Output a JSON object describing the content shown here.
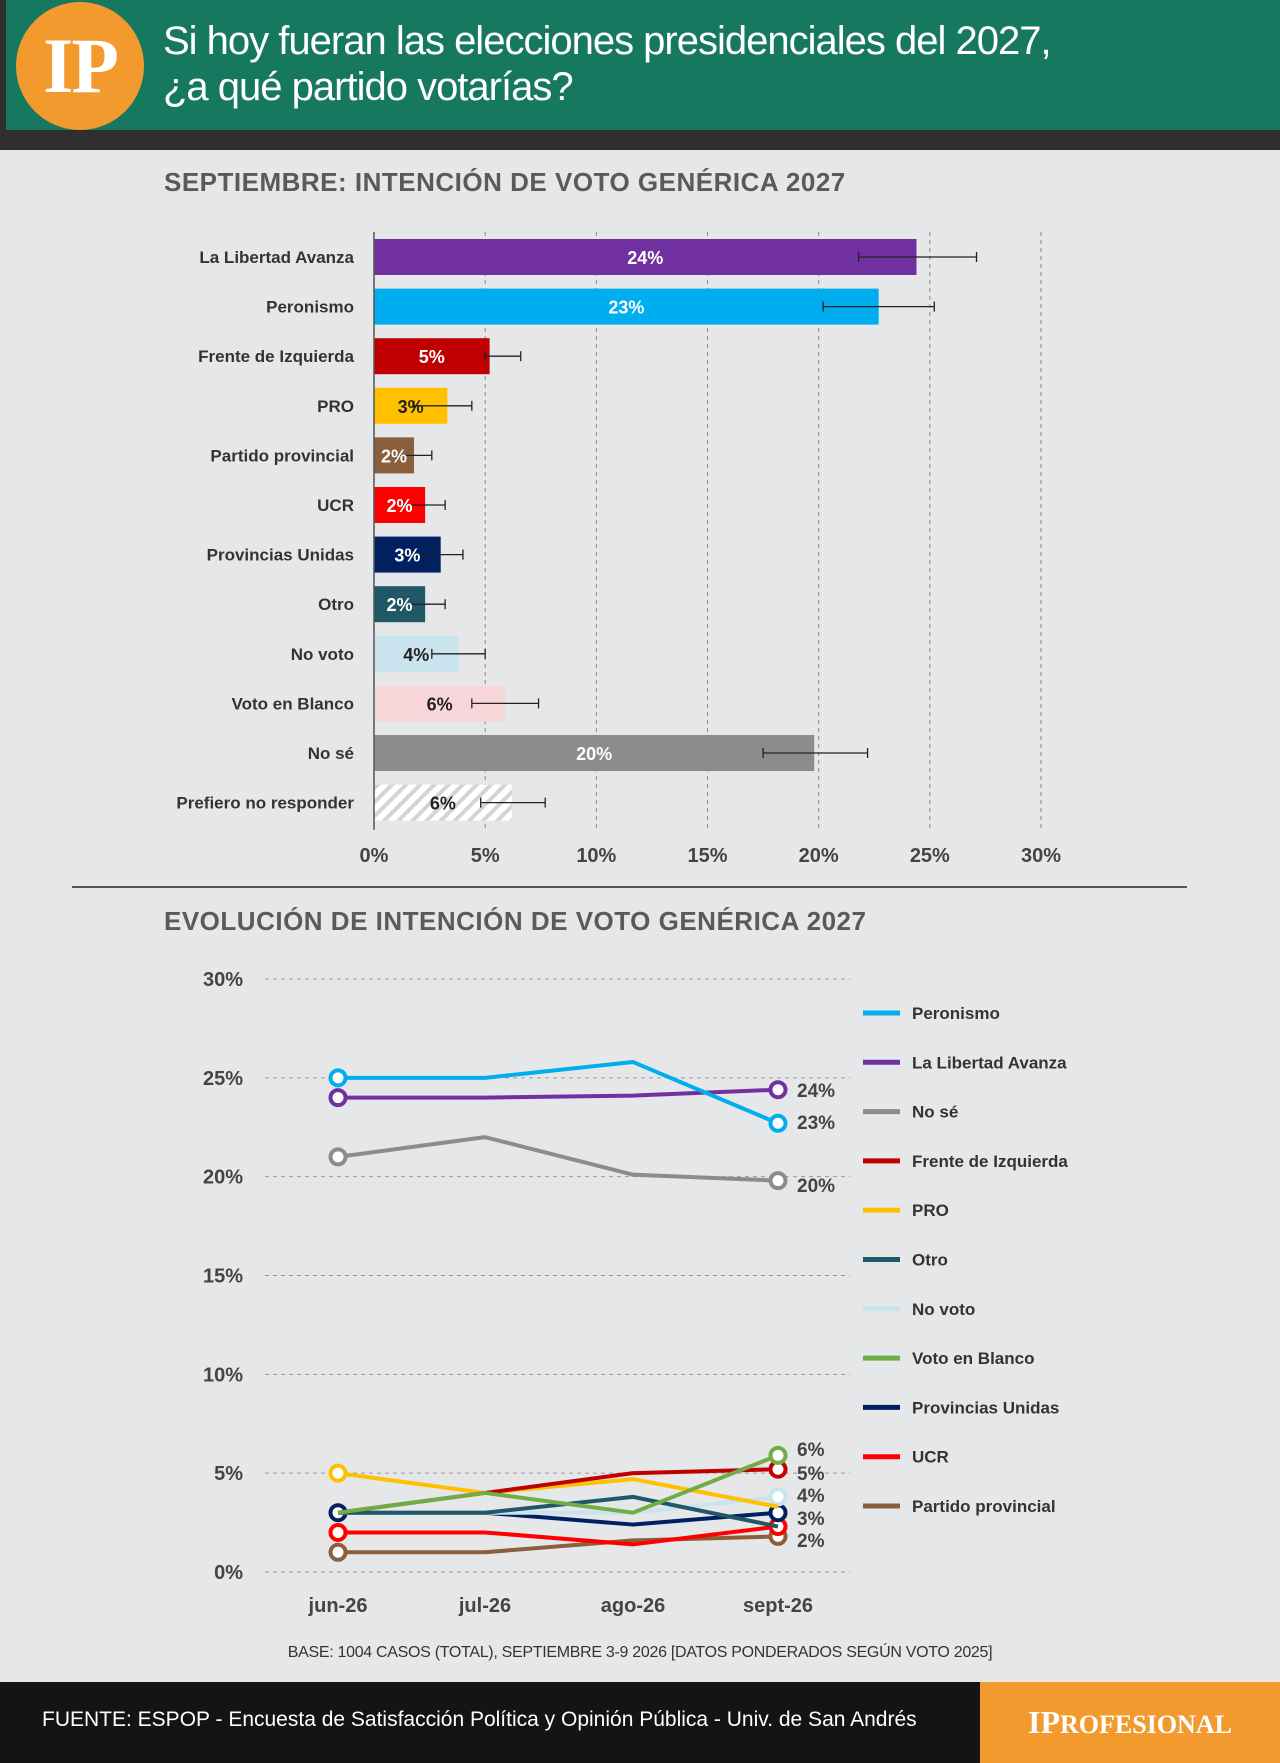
{
  "header": {
    "logo": "IP",
    "title_line1": "Si hoy fueran las elecciones presidenciales del 2027,",
    "title_line2": "¿a qué partido votarías?"
  },
  "bar_section_title": "SEPTIEMBRE: INTENCIÓN DE VOTO GENÉRICA 2027",
  "line_section_title": "EVOLUCIÓN DE INTENCIÓN DE VOTO GENÉRICA 2027",
  "base_note": "BASE: 1004 CASOS (TOTAL), SEPTIEMBRE 3-9 2026 [DATOS PONDERADOS SEGÚN VOTO 2025]",
  "footer": {
    "source": "FUENTE: ESPOP - Encuesta de Satisfacción Política y Opinión Pública - Univ. de San Andrés",
    "brand_cap": "IP",
    "brand_rest": "ROFESIONAL"
  },
  "colors": {
    "La Libertad Avanza": "#7030a0",
    "Peronismo": "#00aeef",
    "Frente de Izquierda": "#c00000",
    "PRO": "#ffc000",
    "Partido provincial": "#8b5e3c",
    "UCR": "#ff0000",
    "Provincias Unidas": "#002060",
    "Otro": "#215868",
    "No voto": "#c9e4ef",
    "Voto en Blanco": "#70ad47",
    "Voto en Blanco bar": "#f8d7da",
    "No sé": "#8c8c8c",
    "Prefiero no responder": "#ffffff"
  },
  "chart_data": [
    {
      "type": "bar",
      "orientation": "horizontal",
      "title": "SEPTIEMBRE: INTENCIÓN DE VOTO GENÉRICA 2027",
      "categories": [
        "La Libertad Avanza",
        "Peronismo",
        "Frente de Izquierda",
        "PRO",
        "Partido provincial",
        "UCR",
        "Provincias Unidas",
        "Otro",
        "No voto",
        "Voto en Blanco",
        "No sé",
        "Prefiero no responder"
      ],
      "values": [
        24.4,
        22.7,
        5.2,
        3.3,
        1.8,
        2.3,
        3.0,
        2.3,
        3.8,
        5.9,
        19.8,
        6.2
      ],
      "labels": [
        "24%",
        "23%",
        "5%",
        "3%",
        "2%",
        "2%",
        "3%",
        "2%",
        "4%",
        "6%",
        "20%",
        "6%"
      ],
      "error_low": [
        21.8,
        20.2,
        5.0,
        1.8,
        1.0,
        1.3,
        1.7,
        1.3,
        2.6,
        4.4,
        17.5,
        4.8
      ],
      "error_high": [
        27.1,
        25.2,
        6.6,
        4.4,
        2.6,
        3.2,
        4.0,
        3.2,
        5.0,
        7.4,
        22.2,
        7.7
      ],
      "xlim": [
        0,
        30
      ],
      "xticks": [
        "0%",
        "5%",
        "10%",
        "15%",
        "20%",
        "25%",
        "30%"
      ],
      "grid": "vertical dashed"
    },
    {
      "type": "line",
      "title": "EVOLUCIÓN DE INTENCIÓN DE VOTO GENÉRICA 2027",
      "x": [
        "jun-26",
        "jul-26",
        "ago-26",
        "sept-26"
      ],
      "ylim": [
        0,
        30
      ],
      "yticks": [
        "0%",
        "5%",
        "10%",
        "15%",
        "20%",
        "25%",
        "30%"
      ],
      "legend_position": "right",
      "series": [
        {
          "name": "Peronismo",
          "values": [
            25,
            25,
            25.8,
            22.7
          ]
        },
        {
          "name": "La Libertad Avanza",
          "values": [
            24,
            24,
            24.1,
            24.4
          ]
        },
        {
          "name": "No sé",
          "values": [
            21,
            22,
            20.1,
            19.8
          ]
        },
        {
          "name": "Frente de Izquierda",
          "values": [
            3,
            4,
            5,
            5.2
          ]
        },
        {
          "name": "PRO",
          "values": [
            5,
            4,
            4.7,
            3.3
          ]
        },
        {
          "name": "Otro",
          "values": [
            3,
            3,
            3.8,
            2.3
          ]
        },
        {
          "name": "No voto",
          "values": [
            3,
            3,
            3,
            3.8
          ]
        },
        {
          "name": "Voto en Blanco",
          "values": [
            3,
            4,
            3,
            5.9
          ]
        },
        {
          "name": "Provincias Unidas",
          "values": [
            3,
            3,
            2.4,
            3.0
          ]
        },
        {
          "name": "UCR",
          "values": [
            2,
            2,
            1.4,
            2.3
          ]
        },
        {
          "name": "Partido provincial",
          "values": [
            1,
            1,
            1.6,
            1.8
          ]
        }
      ],
      "end_labels": [
        "24%",
        "23%",
        "20%",
        "6%",
        "5%",
        "4%",
        "3%",
        "2%"
      ]
    }
  ]
}
